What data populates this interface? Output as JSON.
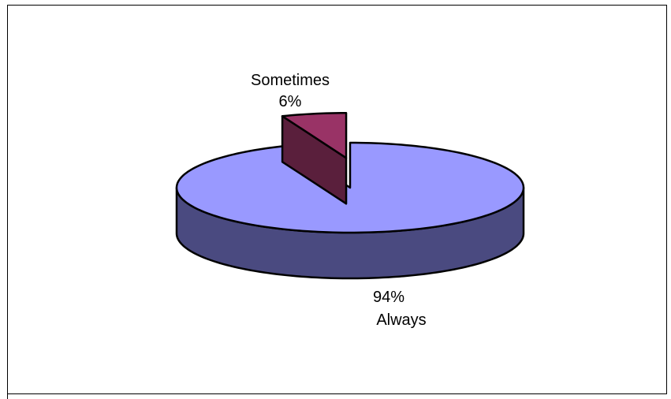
{
  "chart_data": {
    "type": "pie",
    "title": "",
    "three_d": true,
    "exploded": true,
    "slices": [
      {
        "category": "Always",
        "value": 94,
        "percent_label": "94%",
        "top_color": "#9999ff",
        "side_color": "#4a4a80"
      },
      {
        "category": "Sometimes",
        "value": 6,
        "percent_label": "6%",
        "top_color": "#993366",
        "side_color": "#5a1f3c"
      }
    ],
    "labels": {
      "always": {
        "category": "Always",
        "percent": "94%"
      },
      "sometimes": {
        "category": "Sometimes",
        "percent": "6%"
      }
    }
  }
}
